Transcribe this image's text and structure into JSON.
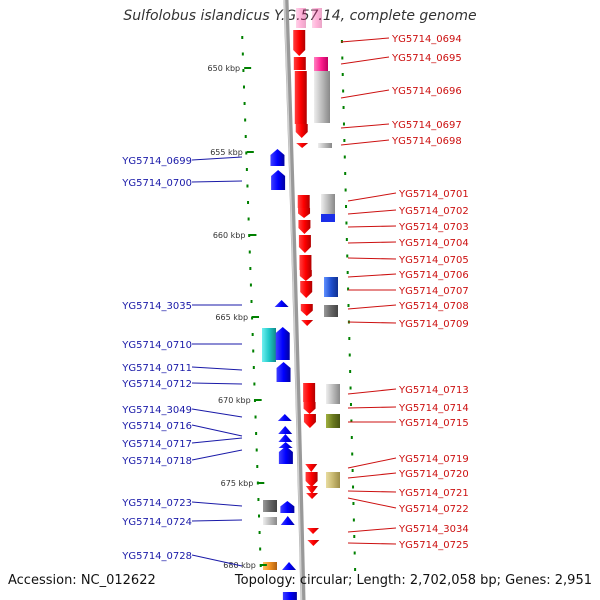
{
  "title": "Sulfolobus islandicus Y.G.57.14, complete genome",
  "footer": {
    "accession": "Accession: NC_012622",
    "topology": "Topology: circular; Length: 2,702,058 bp; Genes: 2,951"
  },
  "colors": {
    "forward_gene": "#e00000",
    "reverse_gene": "#0000e0",
    "label_forward": "#cc1010",
    "label_reverse": "#1a1aa8",
    "backbone": "#999999",
    "tick": "#008000"
  },
  "ruler": [
    {
      "label": "650 kbp",
      "kbp": 650
    },
    {
      "label": "655 kbp",
      "kbp": 655
    },
    {
      "label": "660 kbp",
      "kbp": 660
    },
    {
      "label": "665 kbp",
      "kbp": 665
    },
    {
      "label": "670 kbp",
      "kbp": 670
    },
    {
      "label": "675 kbp",
      "kbp": 675
    },
    {
      "label": "680 kbp",
      "kbp": 680
    }
  ],
  "forward_genes": [
    "YG5714_0694",
    "YG5714_0695",
    "YG5714_0696",
    "YG5714_0697",
    "YG5714_0698",
    "YG5714_0701",
    "YG5714_0702",
    "YG5714_0703",
    "YG5714_0704",
    "YG5714_0705",
    "YG5714_0706",
    "YG5714_0707",
    "YG5714_0708",
    "YG5714_0709",
    "YG5714_0713",
    "YG5714_0714",
    "YG5714_0715",
    "YG5714_0719",
    "YG5714_0720",
    "YG5714_0721",
    "YG5714_0722",
    "YG5714_3034",
    "YG5714_0725"
  ],
  "reverse_genes": [
    "YG5714_0699",
    "YG5714_0700",
    "YG5714_3035",
    "YG5714_0710",
    "YG5714_0711",
    "YG5714_0712",
    "YG5714_3049",
    "YG5714_0716",
    "YG5714_0717",
    "YG5714_0718",
    "YG5714_0723",
    "YG5714_0724",
    "YG5714_0728"
  ]
}
